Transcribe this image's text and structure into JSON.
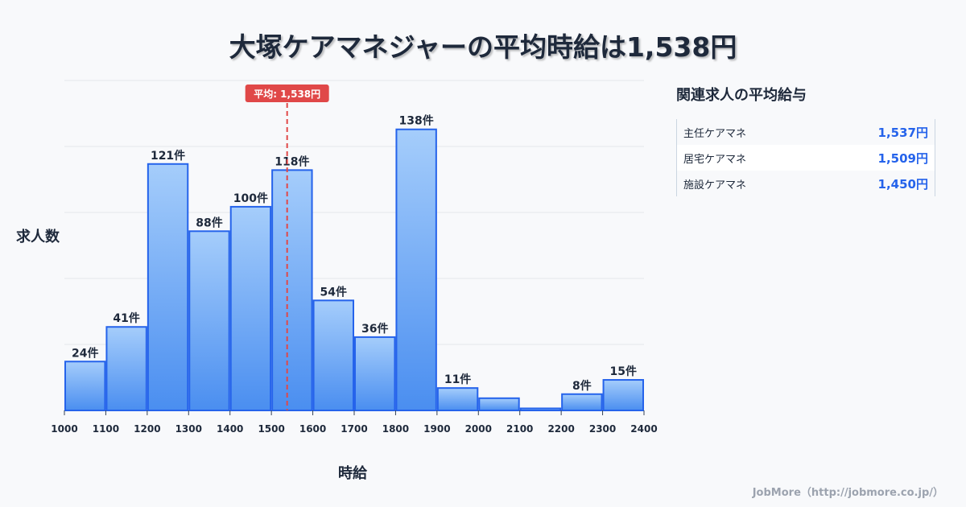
{
  "chart_data": {
    "type": "bar",
    "title": "大塚ケアマネジャーの平均時給は1,538円",
    "xlabel": "時給",
    "ylabel": "求人数",
    "bin_edges": [
      1000,
      1100,
      1200,
      1300,
      1400,
      1500,
      1600,
      1700,
      1800,
      1900,
      2000,
      2100,
      2200,
      2300,
      2400
    ],
    "tick_labels": [
      "1000",
      "1100",
      "1200",
      "1300",
      "1400",
      "1500",
      "1600",
      "1700",
      "1800",
      "1900",
      "2000",
      "2100",
      "2200",
      "2300",
      "2400"
    ],
    "values": [
      24,
      41,
      121,
      88,
      100,
      118,
      54,
      36,
      138,
      11,
      6,
      1,
      8,
      15
    ],
    "labels": [
      "24件",
      "41件",
      "121件",
      "88件",
      "100件",
      "118件",
      "54件",
      "36件",
      "138件",
      "11件",
      "",
      "",
      "8件",
      "15件"
    ],
    "xlim": [
      1000,
      2400
    ],
    "ylim": [
      0,
      162
    ],
    "grid": true,
    "mean": 1538,
    "mean_label": "平均: 1,538円",
    "colors": {
      "bar_top": "#a5cdfb",
      "bar_bottom": "#4a8ef0",
      "bar_edge": "#2563eb",
      "mean": "#e04848"
    }
  },
  "side": {
    "title": "関連求人の平均給与",
    "items": [
      {
        "name": "主任ケアマネ",
        "value": "1,537円"
      },
      {
        "name": "居宅ケアマネ",
        "value": "1,509円"
      },
      {
        "name": "施設ケアマネ",
        "value": "1,450円"
      }
    ]
  },
  "footer": "JobMore（http://jobmore.co.jp/）"
}
